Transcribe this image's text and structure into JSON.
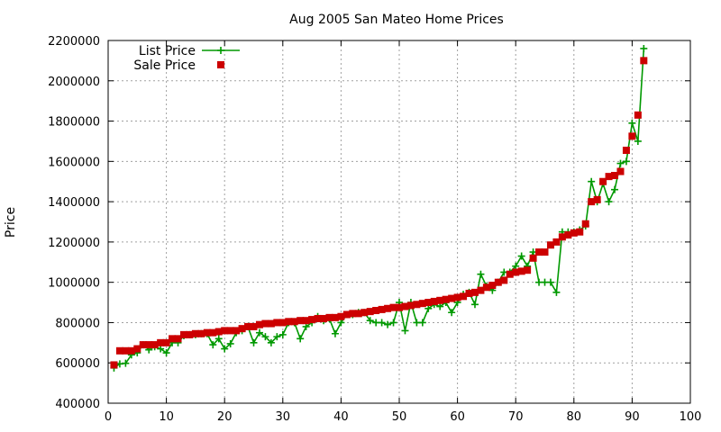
{
  "chart_data": {
    "type": "line",
    "title": "Aug 2005 San Mateo Home Prices",
    "xlabel": "",
    "ylabel": "Price",
    "xlim": [
      0,
      100
    ],
    "ylim": [
      400000,
      2200000
    ],
    "xticks": [
      0,
      10,
      20,
      30,
      40,
      50,
      60,
      70,
      80,
      90,
      100
    ],
    "yticks": [
      400000,
      600000,
      800000,
      1000000,
      1200000,
      1400000,
      1600000,
      1800000,
      2000000,
      2200000
    ],
    "grid": true,
    "legend_position": "top-left",
    "x": [
      1,
      2,
      3,
      4,
      5,
      6,
      7,
      8,
      9,
      10,
      11,
      12,
      13,
      14,
      15,
      16,
      17,
      18,
      19,
      20,
      21,
      22,
      23,
      24,
      25,
      26,
      27,
      28,
      29,
      30,
      31,
      32,
      33,
      34,
      35,
      36,
      37,
      38,
      39,
      40,
      41,
      42,
      43,
      44,
      45,
      46,
      47,
      48,
      49,
      50,
      51,
      52,
      53,
      54,
      55,
      56,
      57,
      58,
      59,
      60,
      61,
      62,
      63,
      64,
      65,
      66,
      67,
      68,
      69,
      70,
      71,
      72,
      73,
      74,
      75,
      76,
      77,
      78,
      79,
      80,
      81,
      82,
      83,
      84,
      85,
      86,
      87,
      88,
      89,
      90,
      91,
      92
    ],
    "series": [
      {
        "name": "List Price",
        "color": "#009900",
        "marker": "plus",
        "line": true,
        "values": [
          575000,
          595000,
          598000,
          640000,
          650000,
          690000,
          665000,
          680000,
          670000,
          650000,
          700000,
          700000,
          735000,
          740000,
          740000,
          745000,
          745000,
          690000,
          720000,
          670000,
          695000,
          750000,
          760000,
          780000,
          700000,
          750000,
          730000,
          700000,
          730000,
          740000,
          800000,
          800000,
          720000,
          780000,
          800000,
          830000,
          810000,
          820000,
          745000,
          800000,
          840000,
          840000,
          850000,
          850000,
          810000,
          800000,
          800000,
          790000,
          800000,
          900000,
          760000,
          900000,
          800000,
          800000,
          870000,
          890000,
          880000,
          900000,
          850000,
          900000,
          940000,
          950000,
          890000,
          1040000,
          980000,
          960000,
          1000000,
          1050000,
          1050000,
          1080000,
          1130000,
          1080000,
          1150000,
          1000000,
          1000000,
          1000000,
          950000,
          1250000,
          1250000,
          1250000,
          1260000,
          1280000,
          1500000,
          1400000,
          1490000,
          1400000,
          1460000,
          1590000,
          1600000,
          1790000,
          1700000,
          2160000
        ]
      },
      {
        "name": "Sale Price",
        "color": "#cc0000",
        "marker": "square",
        "line": false,
        "values": [
          590000,
          660000,
          660000,
          660000,
          670000,
          690000,
          690000,
          690000,
          700000,
          700000,
          720000,
          720000,
          740000,
          740000,
          745000,
          745000,
          750000,
          750000,
          755000,
          760000,
          760000,
          760000,
          770000,
          780000,
          780000,
          790000,
          795000,
          795000,
          800000,
          800000,
          805000,
          805000,
          810000,
          810000,
          815000,
          820000,
          820000,
          825000,
          825000,
          830000,
          840000,
          845000,
          845000,
          850000,
          855000,
          860000,
          865000,
          870000,
          875000,
          875000,
          880000,
          885000,
          890000,
          895000,
          900000,
          905000,
          910000,
          915000,
          920000,
          925000,
          930000,
          945000,
          950000,
          960000,
          975000,
          985000,
          1000000,
          1010000,
          1040000,
          1050000,
          1055000,
          1060000,
          1120000,
          1150000,
          1150000,
          1185000,
          1200000,
          1225000,
          1235000,
          1245000,
          1250000,
          1290000,
          1400000,
          1410000,
          1500000,
          1525000,
          1530000,
          1550000,
          1655000,
          1725000,
          1830000,
          2100000
        ]
      }
    ]
  }
}
